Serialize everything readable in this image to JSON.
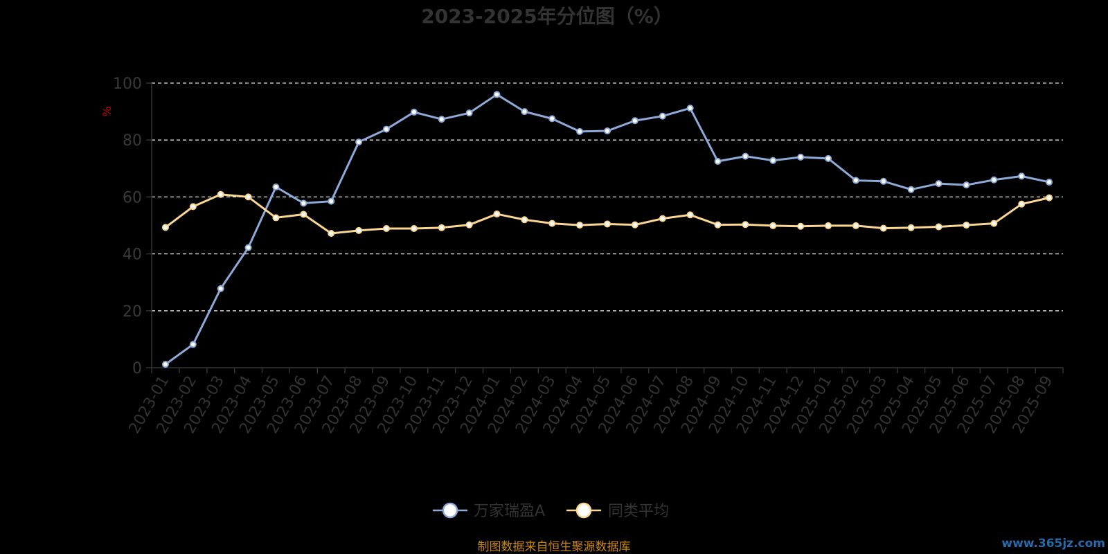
{
  "chart_data": {
    "type": "line",
    "title": "2023-2025年分位图（%）",
    "ylabel": "%",
    "xlabel": "",
    "ylim": [
      0,
      100
    ],
    "yticks": [
      0,
      20,
      40,
      60,
      80,
      100
    ],
    "grid": "horizontal dashed",
    "legend_position": "bottom-center",
    "categories": [
      "2023-01",
      "2023-02",
      "2023-03",
      "2023-04",
      "2023-05",
      "2023-06",
      "2023-07",
      "2023-08",
      "2023-09",
      "2023-10",
      "2023-11",
      "2023-12",
      "2024-01",
      "2024-02",
      "2024-03",
      "2024-04",
      "2024-05",
      "2024-06",
      "2024-07",
      "2024-08",
      "2024-09",
      "2024-10",
      "2024-11",
      "2024-12",
      "2025-01",
      "2025-02",
      "2025-03",
      "2025-04",
      "2025-05",
      "2025-06",
      "2025-07",
      "2025-08",
      "2025-09"
    ],
    "series": [
      {
        "name": "万家瑞盈A",
        "color": "#8eaad8",
        "values": [
          1.2,
          8.2,
          27.8,
          42.2,
          63.5,
          57.8,
          58.5,
          79.3,
          83.8,
          89.8,
          87.3,
          89.5,
          96.0,
          90.0,
          87.5,
          83.0,
          83.2,
          86.8,
          88.4,
          91.2,
          72.5,
          74.3,
          72.8,
          74.0,
          73.5,
          65.8,
          65.5,
          62.6,
          64.7,
          64.2,
          66.0,
          67.3,
          65.2
        ]
      },
      {
        "name": "同类平均",
        "color": "#fbd592",
        "values": [
          49.3,
          56.6,
          60.9,
          60.0,
          52.7,
          53.9,
          47.2,
          48.2,
          48.9,
          48.9,
          49.2,
          50.2,
          54.0,
          52.0,
          50.7,
          50.1,
          50.5,
          50.2,
          52.4,
          53.7,
          50.2,
          50.3,
          49.9,
          49.7,
          49.9,
          49.9,
          49.0,
          49.2,
          49.5,
          50.1,
          50.7,
          57.5,
          59.7
        ]
      }
    ]
  },
  "footer": {
    "source": "制图数据来自恒生聚源数据库",
    "watermark": "www.365jz.com"
  }
}
